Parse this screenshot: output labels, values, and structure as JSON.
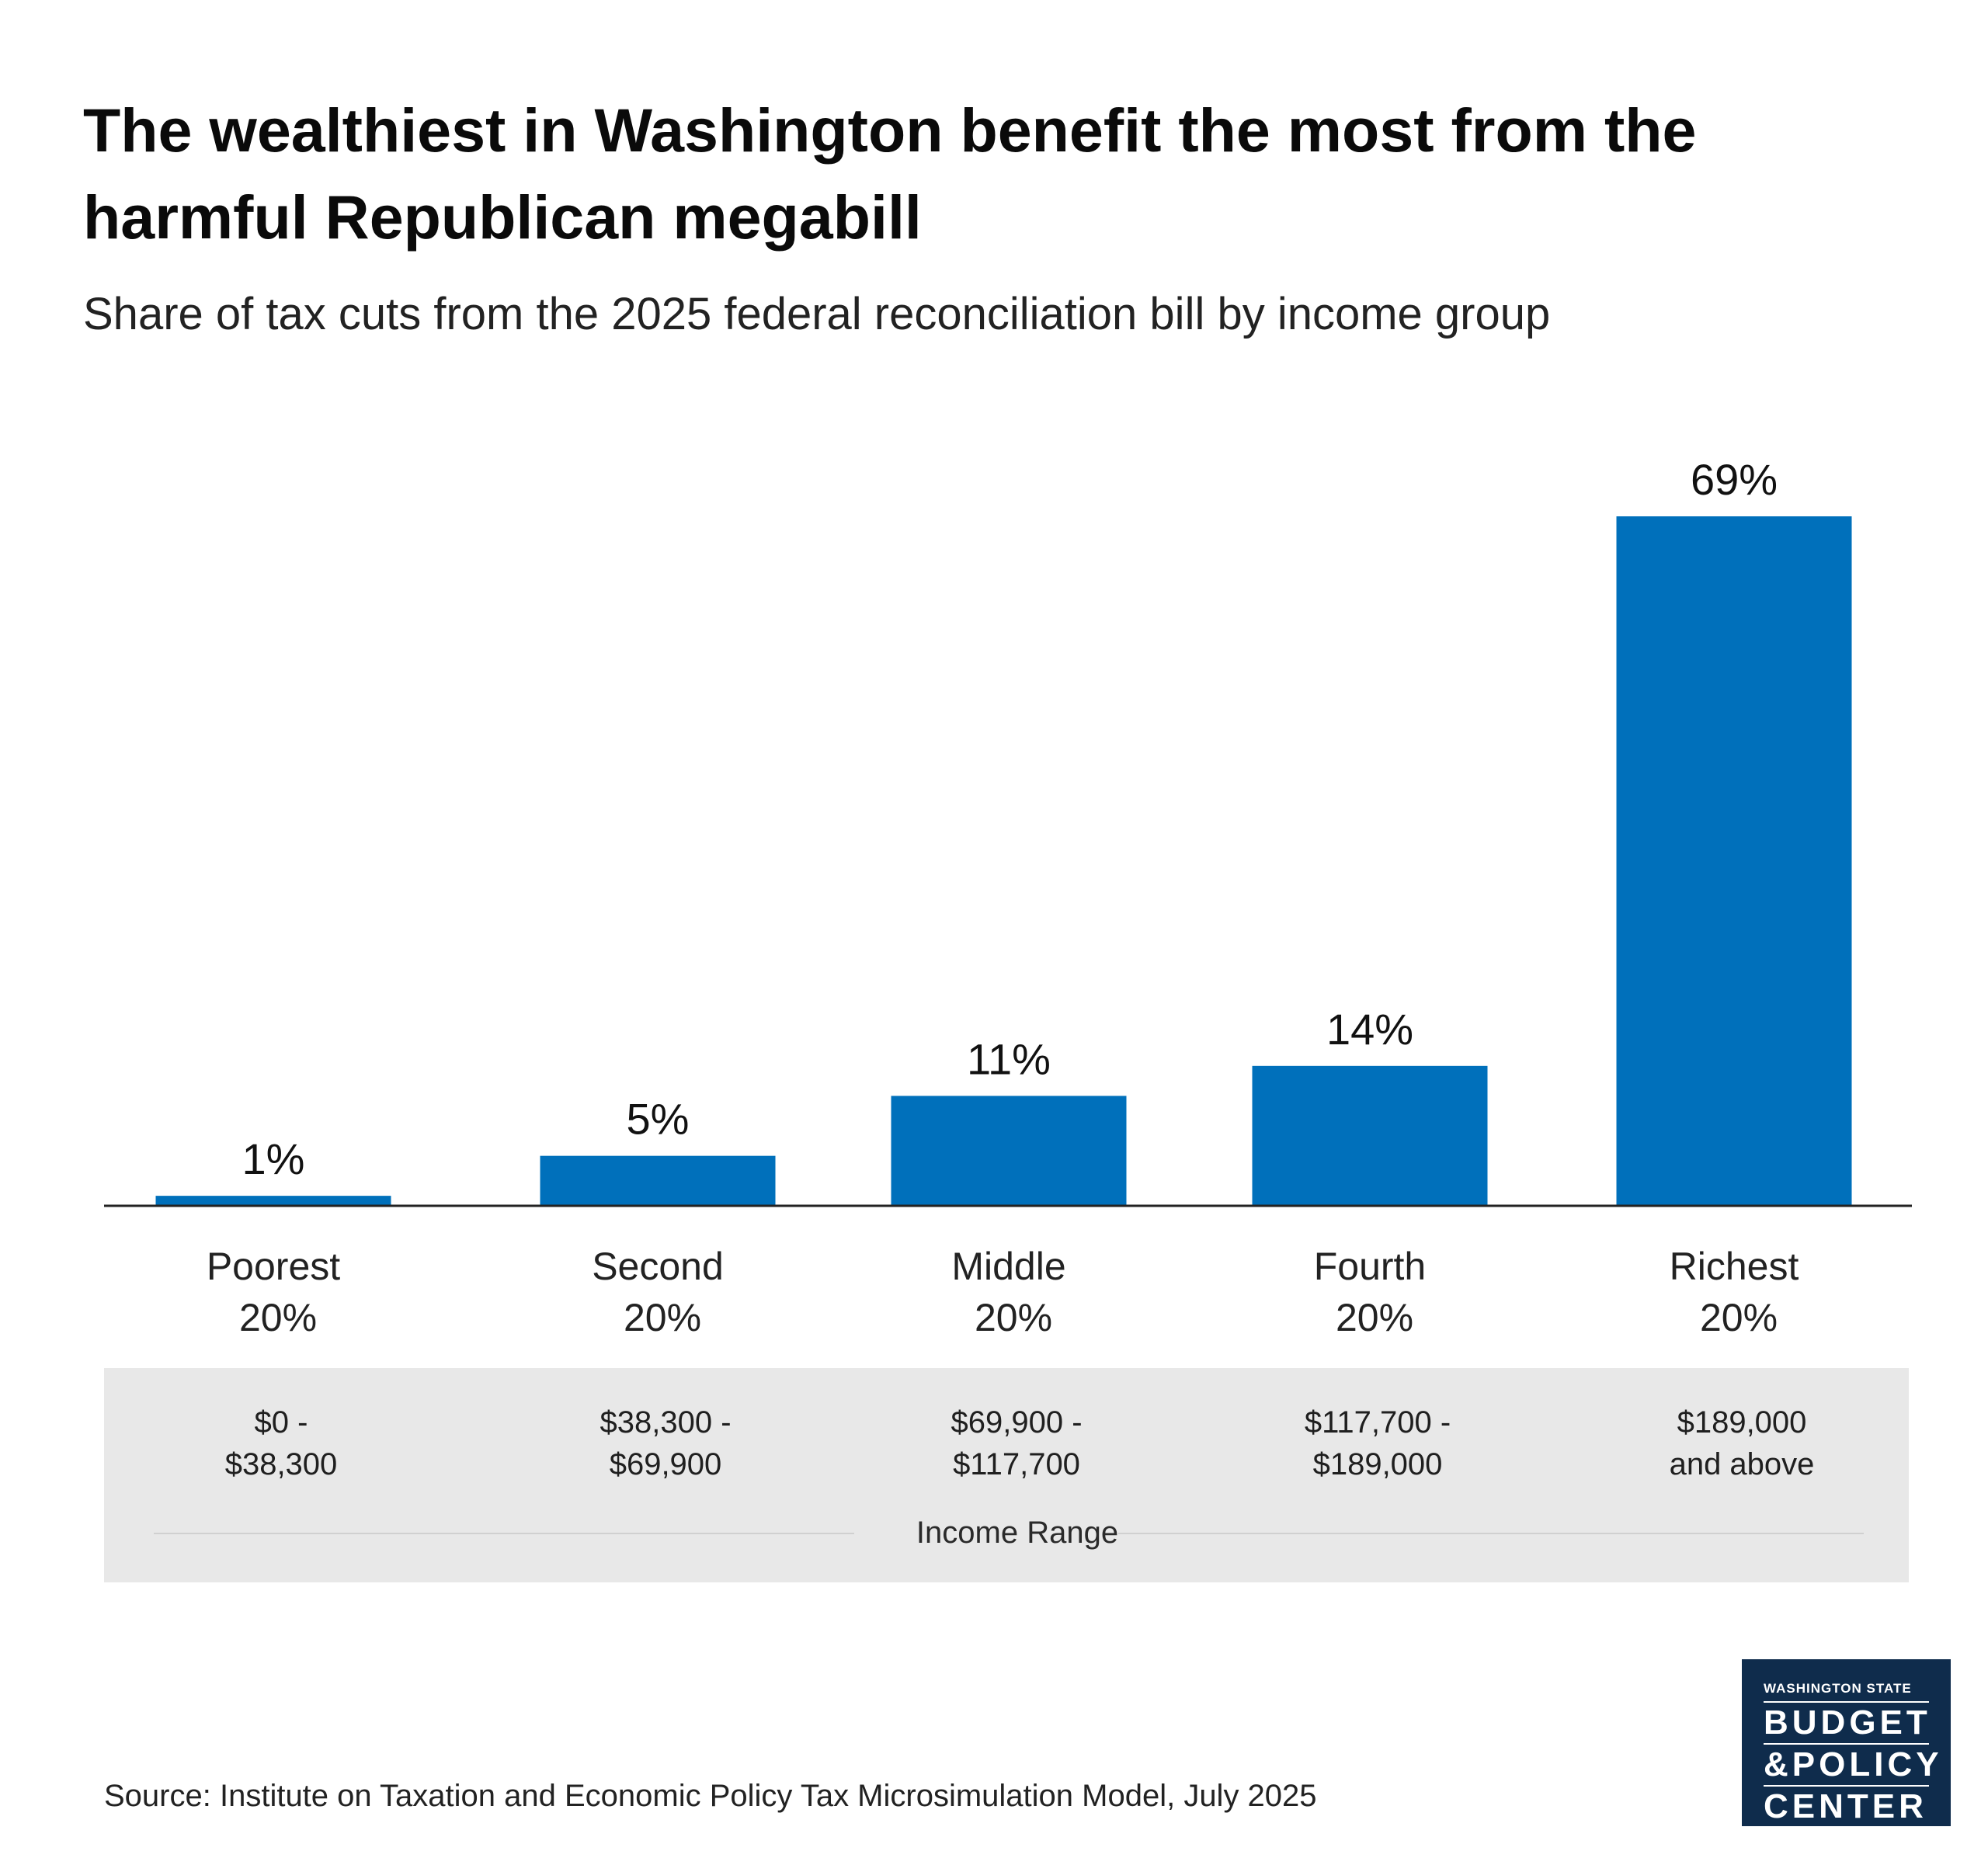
{
  "header": {
    "title": "The wealthiest in Washington benefit the most from the harmful Republican megabill",
    "subtitle": "Share of tax cuts from the 2025 federal reconciliation bill by income group"
  },
  "chart_data": {
    "type": "bar",
    "title": "The wealthiest in Washington benefit the most from the harmful Republican megabill",
    "subtitle": "Share of tax cuts from the 2025 federal reconciliation bill by income group",
    "categories": [
      "Poorest 20%",
      "Second 20%",
      "Middle 20%",
      "Fourth 20%",
      "Richest 20%"
    ],
    "category_lines": [
      [
        "Poorest",
        "20%"
      ],
      [
        "Second",
        "20%"
      ],
      [
        "Middle",
        "20%"
      ],
      [
        "Fourth",
        "20%"
      ],
      [
        "Richest",
        "20%"
      ]
    ],
    "values": [
      1,
      5,
      11,
      14,
      69
    ],
    "value_labels": [
      "1%",
      "5%",
      "11%",
      "14%",
      "69%"
    ],
    "ylim": [
      0,
      69
    ],
    "grid": false,
    "bar_color": "#0070bb",
    "xlabel": "Income Range",
    "ylabel": ""
  },
  "income_ranges": [
    [
      "$0 -",
      "$38,300"
    ],
    [
      "$38,300 -",
      "$69,900"
    ],
    [
      "$69,900 -",
      "$117,700"
    ],
    [
      "$117,700 -",
      "$189,000"
    ],
    [
      "$189,000",
      "and above"
    ]
  ],
  "axis_title": "Income Range",
  "source": "Source: Institute on Taxation and Economic Policy Tax Microsimulation Model, July 2025",
  "logo": {
    "top": "WASHINGTON STATE",
    "line1": "BUDGET",
    "line2": "&POLICY",
    "line3": "CENTER",
    "background": "#0f2c4c"
  }
}
